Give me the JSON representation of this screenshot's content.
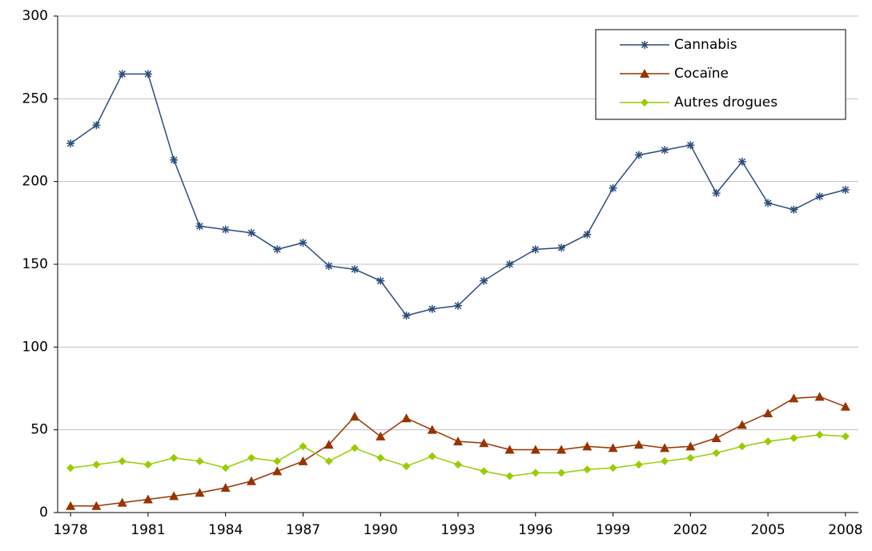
{
  "chart_data": {
    "type": "line",
    "x": [
      1978,
      1979,
      1980,
      1981,
      1982,
      1983,
      1984,
      1985,
      1986,
      1987,
      1988,
      1989,
      1990,
      1991,
      1992,
      1993,
      1994,
      1995,
      1996,
      1997,
      1998,
      1999,
      2000,
      2001,
      2002,
      2003,
      2004,
      2005,
      2006,
      2007,
      2008
    ],
    "series": [
      {
        "name": "Cannabis",
        "color": "#2b4d7c",
        "marker": "asterisk",
        "values": [
          223,
          234,
          265,
          265,
          213,
          173,
          171,
          169,
          159,
          163,
          149,
          147,
          140,
          119,
          123,
          125,
          140,
          150,
          159,
          160,
          168,
          196,
          216,
          219,
          222,
          193,
          212,
          187,
          183,
          191,
          195
        ]
      },
      {
        "name": "Cocaïne",
        "color": "#993300",
        "marker": "triangle",
        "values": [
          4,
          4,
          6,
          8,
          10,
          12,
          15,
          19,
          25,
          31,
          41,
          58,
          46,
          57,
          50,
          43,
          42,
          38,
          38,
          38,
          40,
          39,
          41,
          39,
          40,
          45,
          53,
          60,
          69,
          70,
          64
        ]
      },
      {
        "name": "Autres drogues",
        "color": "#99cc00",
        "marker": "diamond",
        "values": [
          27,
          29,
          31,
          29,
          33,
          31,
          27,
          33,
          31,
          40,
          31,
          39,
          33,
          28,
          34,
          29,
          25,
          22,
          24,
          24,
          26,
          27,
          29,
          31,
          33,
          36,
          40,
          43,
          45,
          47,
          46
        ]
      }
    ],
    "xlim": [
      1977.5,
      2008.5
    ],
    "xticks": [
      1978,
      1981,
      1984,
      1987,
      1990,
      1993,
      1996,
      1999,
      2002,
      2005,
      2008
    ],
    "ylim": [
      0,
      300
    ],
    "yticks": [
      0,
      50,
      100,
      150,
      200,
      250,
      300
    ],
    "grid": true,
    "legend": "top-right"
  }
}
